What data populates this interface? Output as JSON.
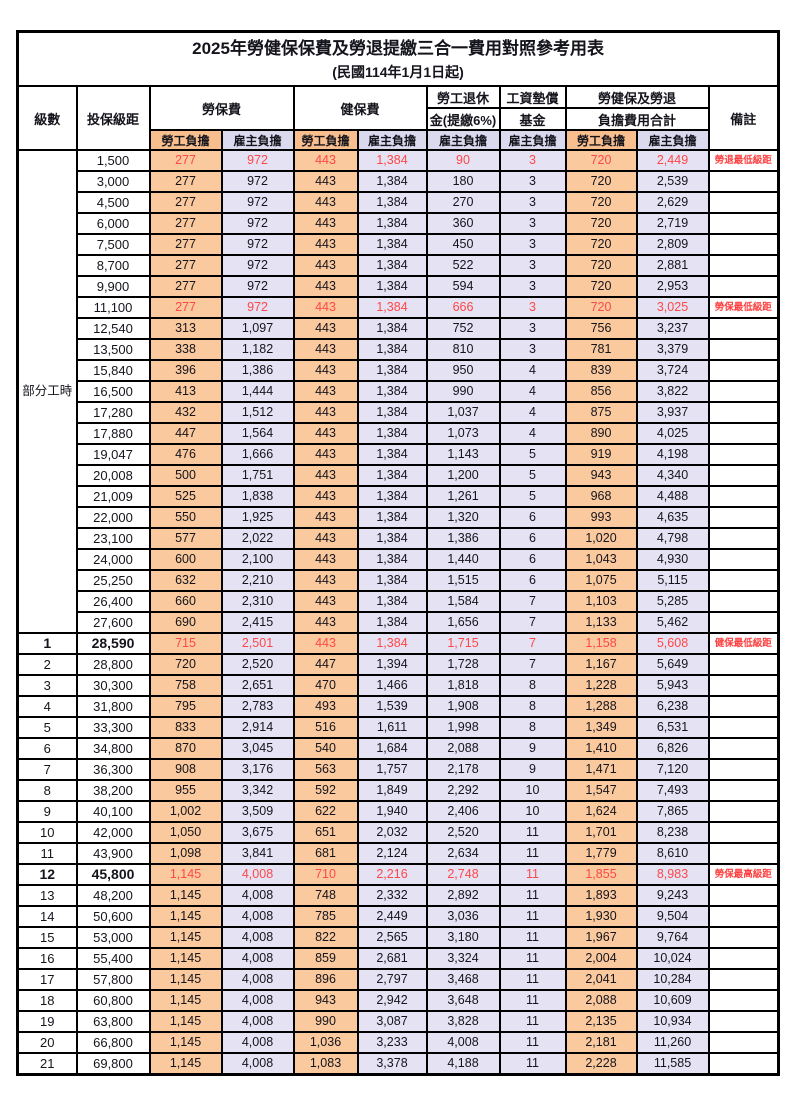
{
  "title": "2025年勞健保保費及勞退提繳三合一費用對照參考用表",
  "subtitle": "(民國114年1月1日起)",
  "colors": {
    "worker_share_bg": "#fac99e",
    "employer_share_bg": "#e4e2f3",
    "highlight_value_red": "#ff4747",
    "remark_red": "#ff4040",
    "border_black": "#000000"
  },
  "columns": {
    "level": "級數",
    "bracket": "投保級距",
    "labor_insurance": "勞保費",
    "health_insurance": "健保費",
    "pension_line1": "勞工退休",
    "pension_line2": "金(提繳6%)",
    "wage_fund_line1": "工資墊償",
    "wage_fund_line2": "基金",
    "total_line1": "勞健保及勞退",
    "total_line2": "負擔費用合計",
    "remark": "備註",
    "worker_share": "勞工負擔",
    "employer_share": "雇主負擔"
  },
  "part_time_label": "部分工時",
  "rows": [
    {
      "lv": null,
      "br": "1,500",
      "v": [
        "277",
        "972",
        "443",
        "1,384",
        "90",
        "3",
        "720",
        "2,449"
      ],
      "rm": "勞退最低級距",
      "red": true
    },
    {
      "lv": null,
      "br": "3,000",
      "v": [
        "277",
        "972",
        "443",
        "1,384",
        "180",
        "3",
        "720",
        "2,539"
      ],
      "rm": ""
    },
    {
      "lv": null,
      "br": "4,500",
      "v": [
        "277",
        "972",
        "443",
        "1,384",
        "270",
        "3",
        "720",
        "2,629"
      ],
      "rm": ""
    },
    {
      "lv": null,
      "br": "6,000",
      "v": [
        "277",
        "972",
        "443",
        "1,384",
        "360",
        "3",
        "720",
        "2,719"
      ],
      "rm": ""
    },
    {
      "lv": null,
      "br": "7,500",
      "v": [
        "277",
        "972",
        "443",
        "1,384",
        "450",
        "3",
        "720",
        "2,809"
      ],
      "rm": ""
    },
    {
      "lv": null,
      "br": "8,700",
      "v": [
        "277",
        "972",
        "443",
        "1,384",
        "522",
        "3",
        "720",
        "2,881"
      ],
      "rm": ""
    },
    {
      "lv": null,
      "br": "9,900",
      "v": [
        "277",
        "972",
        "443",
        "1,384",
        "594",
        "3",
        "720",
        "2,953"
      ],
      "rm": ""
    },
    {
      "lv": null,
      "br": "11,100",
      "v": [
        "277",
        "972",
        "443",
        "1,384",
        "666",
        "3",
        "720",
        "3,025"
      ],
      "rm": "勞保最低級距",
      "red": true
    },
    {
      "lv": null,
      "br": "12,540",
      "v": [
        "313",
        "1,097",
        "443",
        "1,384",
        "752",
        "3",
        "756",
        "3,237"
      ],
      "rm": ""
    },
    {
      "lv": null,
      "br": "13,500",
      "v": [
        "338",
        "1,182",
        "443",
        "1,384",
        "810",
        "3",
        "781",
        "3,379"
      ],
      "rm": ""
    },
    {
      "lv": null,
      "br": "15,840",
      "v": [
        "396",
        "1,386",
        "443",
        "1,384",
        "950",
        "4",
        "839",
        "3,724"
      ],
      "rm": ""
    },
    {
      "lv": null,
      "br": "16,500",
      "v": [
        "413",
        "1,444",
        "443",
        "1,384",
        "990",
        "4",
        "856",
        "3,822"
      ],
      "rm": ""
    },
    {
      "lv": null,
      "br": "17,280",
      "v": [
        "432",
        "1,512",
        "443",
        "1,384",
        "1,037",
        "4",
        "875",
        "3,937"
      ],
      "rm": ""
    },
    {
      "lv": null,
      "br": "17,880",
      "v": [
        "447",
        "1,564",
        "443",
        "1,384",
        "1,073",
        "4",
        "890",
        "4,025"
      ],
      "rm": ""
    },
    {
      "lv": null,
      "br": "19,047",
      "v": [
        "476",
        "1,666",
        "443",
        "1,384",
        "1,143",
        "5",
        "919",
        "4,198"
      ],
      "rm": ""
    },
    {
      "lv": null,
      "br": "20,008",
      "v": [
        "500",
        "1,751",
        "443",
        "1,384",
        "1,200",
        "5",
        "943",
        "4,340"
      ],
      "rm": ""
    },
    {
      "lv": null,
      "br": "21,009",
      "v": [
        "525",
        "1,838",
        "443",
        "1,384",
        "1,261",
        "5",
        "968",
        "4,488"
      ],
      "rm": ""
    },
    {
      "lv": null,
      "br": "22,000",
      "v": [
        "550",
        "1,925",
        "443",
        "1,384",
        "1,320",
        "6",
        "993",
        "4,635"
      ],
      "rm": ""
    },
    {
      "lv": null,
      "br": "23,100",
      "v": [
        "577",
        "2,022",
        "443",
        "1,384",
        "1,386",
        "6",
        "1,020",
        "4,798"
      ],
      "rm": ""
    },
    {
      "lv": null,
      "br": "24,000",
      "v": [
        "600",
        "2,100",
        "443",
        "1,384",
        "1,440",
        "6",
        "1,043",
        "4,930"
      ],
      "rm": ""
    },
    {
      "lv": null,
      "br": "25,250",
      "v": [
        "632",
        "2,210",
        "443",
        "1,384",
        "1,515",
        "6",
        "1,075",
        "5,115"
      ],
      "rm": ""
    },
    {
      "lv": null,
      "br": "26,400",
      "v": [
        "660",
        "2,310",
        "443",
        "1,384",
        "1,584",
        "7",
        "1,103",
        "5,285"
      ],
      "rm": ""
    },
    {
      "lv": null,
      "br": "27,600",
      "v": [
        "690",
        "2,415",
        "443",
        "1,384",
        "1,656",
        "7",
        "1,133",
        "5,462"
      ],
      "rm": ""
    },
    {
      "lv": "1",
      "br": "28,590",
      "v": [
        "715",
        "2,501",
        "443",
        "1,384",
        "1,715",
        "7",
        "1,158",
        "5,608"
      ],
      "rm": "健保最低級距",
      "red": true,
      "bold": true
    },
    {
      "lv": "2",
      "br": "28,800",
      "v": [
        "720",
        "2,520",
        "447",
        "1,394",
        "1,728",
        "7",
        "1,167",
        "5,649"
      ],
      "rm": ""
    },
    {
      "lv": "3",
      "br": "30,300",
      "v": [
        "758",
        "2,651",
        "470",
        "1,466",
        "1,818",
        "8",
        "1,228",
        "5,943"
      ],
      "rm": ""
    },
    {
      "lv": "4",
      "br": "31,800",
      "v": [
        "795",
        "2,783",
        "493",
        "1,539",
        "1,908",
        "8",
        "1,288",
        "6,238"
      ],
      "rm": ""
    },
    {
      "lv": "5",
      "br": "33,300",
      "v": [
        "833",
        "2,914",
        "516",
        "1,611",
        "1,998",
        "8",
        "1,349",
        "6,531"
      ],
      "rm": ""
    },
    {
      "lv": "6",
      "br": "34,800",
      "v": [
        "870",
        "3,045",
        "540",
        "1,684",
        "2,088",
        "9",
        "1,410",
        "6,826"
      ],
      "rm": ""
    },
    {
      "lv": "7",
      "br": "36,300",
      "v": [
        "908",
        "3,176",
        "563",
        "1,757",
        "2,178",
        "9",
        "1,471",
        "7,120"
      ],
      "rm": ""
    },
    {
      "lv": "8",
      "br": "38,200",
      "v": [
        "955",
        "3,342",
        "592",
        "1,849",
        "2,292",
        "10",
        "1,547",
        "7,493"
      ],
      "rm": ""
    },
    {
      "lv": "9",
      "br": "40,100",
      "v": [
        "1,002",
        "3,509",
        "622",
        "1,940",
        "2,406",
        "10",
        "1,624",
        "7,865"
      ],
      "rm": ""
    },
    {
      "lv": "10",
      "br": "42,000",
      "v": [
        "1,050",
        "3,675",
        "651",
        "2,032",
        "2,520",
        "11",
        "1,701",
        "8,238"
      ],
      "rm": ""
    },
    {
      "lv": "11",
      "br": "43,900",
      "v": [
        "1,098",
        "3,841",
        "681",
        "2,124",
        "2,634",
        "11",
        "1,779",
        "8,610"
      ],
      "rm": ""
    },
    {
      "lv": "12",
      "br": "45,800",
      "v": [
        "1,145",
        "4,008",
        "710",
        "2,216",
        "2,748",
        "11",
        "1,855",
        "8,983"
      ],
      "rm": "勞保最高級距",
      "red": true,
      "bold": true
    },
    {
      "lv": "13",
      "br": "48,200",
      "v": [
        "1,145",
        "4,008",
        "748",
        "2,332",
        "2,892",
        "11",
        "1,893",
        "9,243"
      ],
      "rm": ""
    },
    {
      "lv": "14",
      "br": "50,600",
      "v": [
        "1,145",
        "4,008",
        "785",
        "2,449",
        "3,036",
        "11",
        "1,930",
        "9,504"
      ],
      "rm": ""
    },
    {
      "lv": "15",
      "br": "53,000",
      "v": [
        "1,145",
        "4,008",
        "822",
        "2,565",
        "3,180",
        "11",
        "1,967",
        "9,764"
      ],
      "rm": ""
    },
    {
      "lv": "16",
      "br": "55,400",
      "v": [
        "1,145",
        "4,008",
        "859",
        "2,681",
        "3,324",
        "11",
        "2,004",
        "10,024"
      ],
      "rm": ""
    },
    {
      "lv": "17",
      "br": "57,800",
      "v": [
        "1,145",
        "4,008",
        "896",
        "2,797",
        "3,468",
        "11",
        "2,041",
        "10,284"
      ],
      "rm": ""
    },
    {
      "lv": "18",
      "br": "60,800",
      "v": [
        "1,145",
        "4,008",
        "943",
        "2,942",
        "3,648",
        "11",
        "2,088",
        "10,609"
      ],
      "rm": ""
    },
    {
      "lv": "19",
      "br": "63,800",
      "v": [
        "1,145",
        "4,008",
        "990",
        "3,087",
        "3,828",
        "11",
        "2,135",
        "10,934"
      ],
      "rm": ""
    },
    {
      "lv": "20",
      "br": "66,800",
      "v": [
        "1,145",
        "4,008",
        "1,036",
        "3,233",
        "4,008",
        "11",
        "2,181",
        "11,260"
      ],
      "rm": ""
    },
    {
      "lv": "21",
      "br": "69,800",
      "v": [
        "1,145",
        "4,008",
        "1,083",
        "3,378",
        "4,188",
        "11",
        "2,228",
        "11,585"
      ],
      "rm": ""
    }
  ]
}
